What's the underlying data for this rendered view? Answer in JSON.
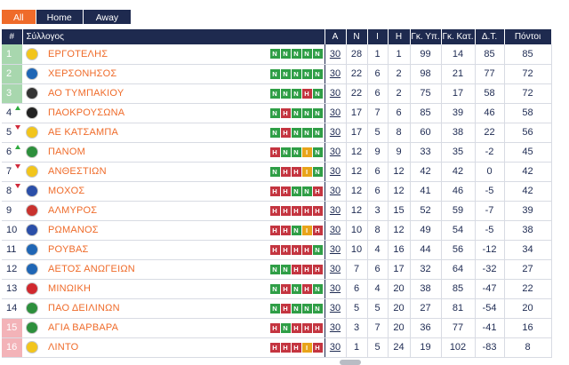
{
  "tabs": [
    "All",
    "Home",
    "Away"
  ],
  "headers": [
    "#",
    "Σύλλογος",
    "Α",
    "Ν",
    "Ι",
    "Η",
    "Γκ. Υπ.",
    "Γκ. Κατ.",
    "Δ.Τ.",
    "Πόντοι"
  ],
  "colors": {
    "accent": "#ef6b2a",
    "navy": "#1e2a4f",
    "win": "#2f9e46",
    "loss": "#c43540",
    "draw": "#e8a41a",
    "promotion": "#a8d7ae",
    "relegation": "#f3b3b8"
  },
  "rows": [
    {
      "pos": "1",
      "zone": "green",
      "trend": "",
      "team": "ΕΡΓΟΤΕΛΗΣ",
      "logo_color": "#f2c51c",
      "form": [
        "N",
        "N",
        "N",
        "N",
        "N"
      ],
      "games": "30",
      "w": "28",
      "d": "1",
      "l": "1",
      "gf": "99",
      "ga": "14",
      "gd": "85",
      "pts": "85"
    },
    {
      "pos": "2",
      "zone": "green",
      "trend": "",
      "team": "ΧΕΡΣΟΝΗΣΟΣ",
      "logo_color": "#1f66b5",
      "form": [
        "N",
        "N",
        "N",
        "N",
        "N"
      ],
      "games": "30",
      "w": "22",
      "d": "6",
      "l": "2",
      "gf": "98",
      "ga": "21",
      "gd": "77",
      "pts": "72"
    },
    {
      "pos": "3",
      "zone": "green",
      "trend": "",
      "team": "ΑΟ ΤΥΜΠΑΚΙΟΥ",
      "logo_color": "#333333",
      "form": [
        "N",
        "N",
        "N",
        "H",
        "N"
      ],
      "games": "30",
      "w": "22",
      "d": "6",
      "l": "2",
      "gf": "75",
      "ga": "17",
      "gd": "58",
      "pts": "72"
    },
    {
      "pos": "4",
      "zone": "",
      "trend": "up",
      "team": "ΠΑΟΚΡΟΥΣΩΝΑ",
      "logo_color": "#222222",
      "form": [
        "N",
        "H",
        "N",
        "N",
        "N"
      ],
      "games": "30",
      "w": "17",
      "d": "7",
      "l": "6",
      "gf": "85",
      "ga": "39",
      "gd": "46",
      "pts": "58"
    },
    {
      "pos": "5",
      "zone": "",
      "trend": "down",
      "team": "ΑΕ ΚΑΤΣΑΜΠΑ",
      "logo_color": "#f2c51c",
      "form": [
        "N",
        "H",
        "N",
        "N",
        "N"
      ],
      "games": "30",
      "w": "17",
      "d": "5",
      "l": "8",
      "gf": "60",
      "ga": "38",
      "gd": "22",
      "pts": "56"
    },
    {
      "pos": "6",
      "zone": "",
      "trend": "up",
      "team": "ΠΑΝΟΜ",
      "logo_color": "#2d8f3c",
      "form": [
        "H",
        "N",
        "N",
        "I",
        "N"
      ],
      "games": "30",
      "w": "12",
      "d": "9",
      "l": "9",
      "gf": "33",
      "ga": "35",
      "gd": "-2",
      "pts": "45"
    },
    {
      "pos": "7",
      "zone": "",
      "trend": "down",
      "team": "ΑΝΘΕΣΤΙΩΝ",
      "logo_color": "#f2c51c",
      "form": [
        "N",
        "H",
        "H",
        "I",
        "N"
      ],
      "games": "30",
      "w": "12",
      "d": "6",
      "l": "12",
      "gf": "42",
      "ga": "42",
      "gd": "0",
      "pts": "42"
    },
    {
      "pos": "8",
      "zone": "",
      "trend": "down",
      "team": "ΜΟΧΟΣ",
      "logo_color": "#2b4fa8",
      "form": [
        "H",
        "H",
        "N",
        "N",
        "H"
      ],
      "games": "30",
      "w": "12",
      "d": "6",
      "l": "12",
      "gf": "41",
      "ga": "46",
      "gd": "-5",
      "pts": "42"
    },
    {
      "pos": "9",
      "zone": "",
      "trend": "",
      "team": "ΑΛΜΥΡΟΣ",
      "logo_color": "#c8322e",
      "form": [
        "H",
        "H",
        "H",
        "H",
        "H"
      ],
      "games": "30",
      "w": "12",
      "d": "3",
      "l": "15",
      "gf": "52",
      "ga": "59",
      "gd": "-7",
      "pts": "39"
    },
    {
      "pos": "10",
      "zone": "",
      "trend": "",
      "team": "ΡΩΜΑΝΟΣ",
      "logo_color": "#2b4fa8",
      "form": [
        "H",
        "H",
        "N",
        "I",
        "H"
      ],
      "games": "30",
      "w": "10",
      "d": "8",
      "l": "12",
      "gf": "49",
      "ga": "54",
      "gd": "-5",
      "pts": "38"
    },
    {
      "pos": "11",
      "zone": "",
      "trend": "",
      "team": "ΡΟΥΒΑΣ",
      "logo_color": "#1f66b5",
      "form": [
        "H",
        "H",
        "H",
        "H",
        "N"
      ],
      "games": "30",
      "w": "10",
      "d": "4",
      "l": "16",
      "gf": "44",
      "ga": "56",
      "gd": "-12",
      "pts": "34"
    },
    {
      "pos": "12",
      "zone": "",
      "trend": "",
      "team": "ΑΕΤΟΣ ΑΝΩΓΕΙΩΝ",
      "logo_color": "#1f66b5",
      "form": [
        "N",
        "N",
        "H",
        "H",
        "H"
      ],
      "games": "30",
      "w": "7",
      "d": "6",
      "l": "17",
      "gf": "32",
      "ga": "64",
      "gd": "-32",
      "pts": "27"
    },
    {
      "pos": "13",
      "zone": "",
      "trend": "",
      "team": "ΜΙΝΩΙΚΗ",
      "logo_color": "#d0282e",
      "form": [
        "N",
        "H",
        "N",
        "H",
        "N"
      ],
      "games": "30",
      "w": "6",
      "d": "4",
      "l": "20",
      "gf": "38",
      "ga": "85",
      "gd": "-47",
      "pts": "22"
    },
    {
      "pos": "14",
      "zone": "",
      "trend": "",
      "team": "ΠΑΟ ΔΕΙΛΙΝΩΝ",
      "logo_color": "#2d8f3c",
      "form": [
        "N",
        "H",
        "N",
        "N",
        "N"
      ],
      "games": "30",
      "w": "5",
      "d": "5",
      "l": "20",
      "gf": "27",
      "ga": "81",
      "gd": "-54",
      "pts": "20"
    },
    {
      "pos": "15",
      "zone": "red",
      "trend": "",
      "team": "ΑΓΙΑ ΒΑΡΒΑΡΑ",
      "logo_color": "#2d8f3c",
      "form": [
        "H",
        "N",
        "H",
        "H",
        "H"
      ],
      "games": "30",
      "w": "3",
      "d": "7",
      "l": "20",
      "gf": "36",
      "ga": "77",
      "gd": "-41",
      "pts": "16"
    },
    {
      "pos": "16",
      "zone": "red",
      "trend": "",
      "team": "ΛΙΝΤΟ",
      "logo_color": "#f2c51c",
      "form": [
        "H",
        "H",
        "H",
        "I",
        "H"
      ],
      "games": "30",
      "w": "1",
      "d": "5",
      "l": "24",
      "gf": "19",
      "ga": "102",
      "gd": "-83",
      "pts": "8"
    }
  ]
}
